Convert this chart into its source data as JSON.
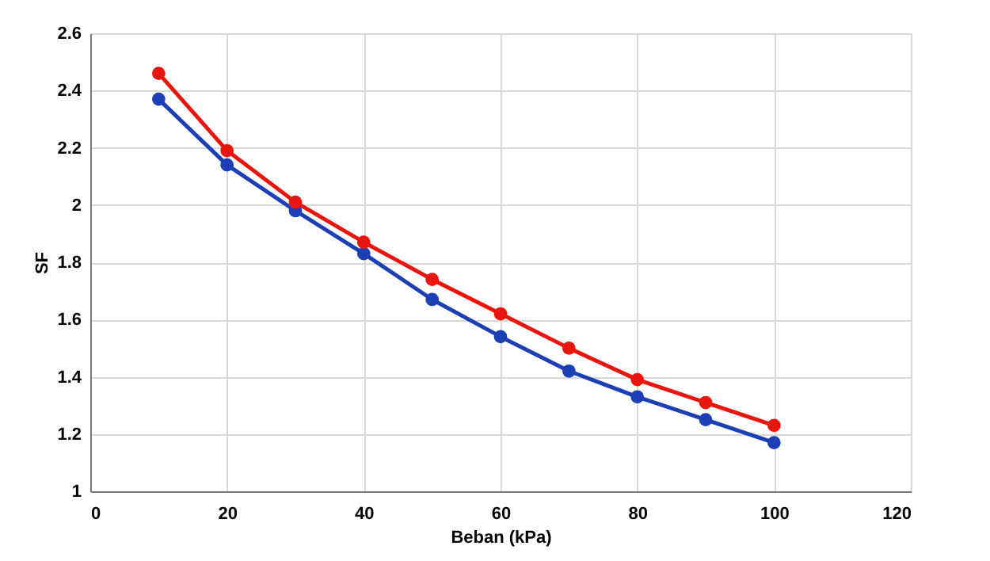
{
  "chart_data": {
    "type": "line",
    "xlabel": "Beban (kPa)",
    "ylabel": "SF",
    "x": [
      10,
      20,
      30,
      40,
      50,
      60,
      70,
      80,
      90,
      100
    ],
    "series": [
      {
        "color": "#1c3fb5",
        "values": [
          2.37,
          2.14,
          1.98,
          1.83,
          1.67,
          1.54,
          1.42,
          1.33,
          1.25,
          1.17
        ]
      },
      {
        "color": "#e8160f",
        "values": [
          2.46,
          2.19,
          2.01,
          1.87,
          1.74,
          1.62,
          1.5,
          1.39,
          1.31,
          1.23
        ]
      }
    ],
    "xlim": [
      0,
      120
    ],
    "xticks": [
      0,
      20,
      40,
      60,
      80,
      100,
      120
    ],
    "ylim": [
      1,
      2.6
    ],
    "yticks": [
      1,
      1.2,
      1.4,
      1.6,
      1.8,
      2,
      2.2,
      2.4,
      2.6
    ],
    "grid": true,
    "legend": false,
    "marker": "circle",
    "line_style": "solid"
  }
}
